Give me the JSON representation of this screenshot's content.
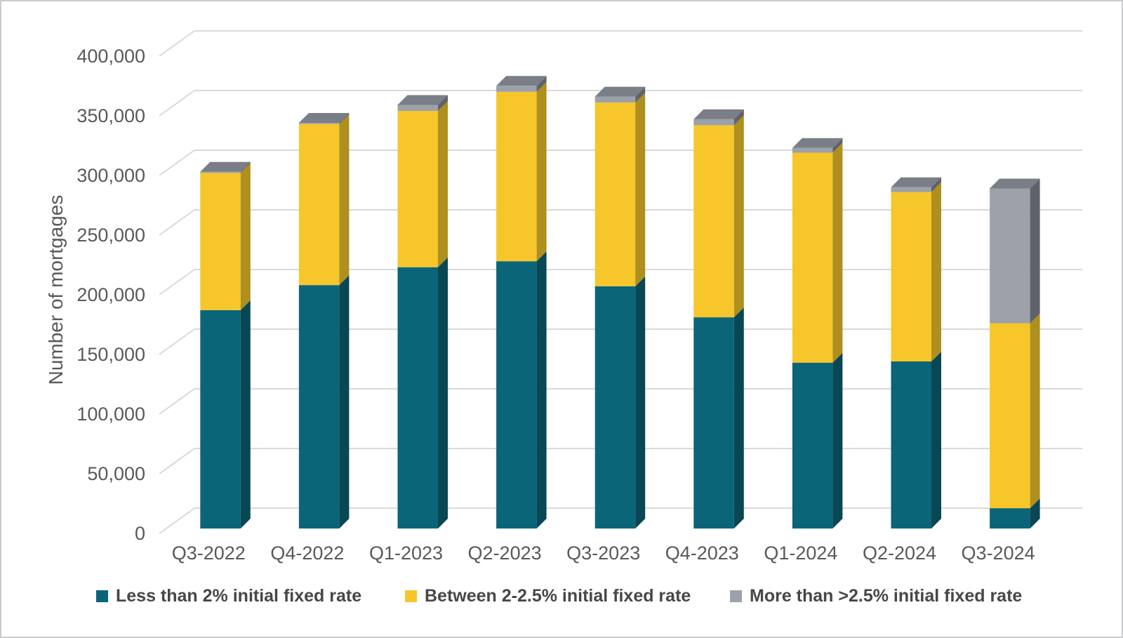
{
  "chart_data": {
    "type": "bar",
    "variant": "stacked-3d-column",
    "title": "",
    "ylabel": "Number of mortgages",
    "xlabel": "",
    "ylim": [
      0,
      400000
    ],
    "ytick_step": 50000,
    "ytick_labels": [
      "0",
      "50,000",
      "100,000",
      "150,000",
      "200,000",
      "250,000",
      "300,000",
      "350,000",
      "400,000"
    ],
    "grid": true,
    "legend_position": "bottom",
    "categories": [
      "Q3-2022",
      "Q4-2022",
      "Q1-2023",
      "Q2-2023",
      "Q3-2023",
      "Q4-2023",
      "Q1-2024",
      "Q2-2024",
      "Q3-2024"
    ],
    "series": [
      {
        "name": "Less than 2% initial fixed rate",
        "color": "#0B6578",
        "side_color": "#094754",
        "top_color": "#0A5462",
        "values": [
          183000,
          204000,
          219000,
          224000,
          203000,
          177000,
          139000,
          140000,
          17000
        ]
      },
      {
        "name": "Between 2-2.5% initial fixed rate",
        "color": "#F6C62B",
        "side_color": "#AF8F1D",
        "top_color": "#C7A322",
        "values": [
          115000,
          135000,
          131000,
          142000,
          154000,
          161000,
          176000,
          142000,
          155000
        ]
      },
      {
        "name": "More than >2.5% initial fixed rate",
        "color": "#9CA1AA",
        "side_color": "#5F626A",
        "top_color": "#7A7E87",
        "values": [
          1000,
          1000,
          5000,
          5000,
          5000,
          5000,
          4000,
          4000,
          113000
        ]
      }
    ],
    "colors": {
      "gridline": "#D9D9D9",
      "axis_text": "#595959",
      "legend_text": "#474747",
      "background": "#FFFFFF",
      "frame_border": "#C9CBCD"
    }
  }
}
